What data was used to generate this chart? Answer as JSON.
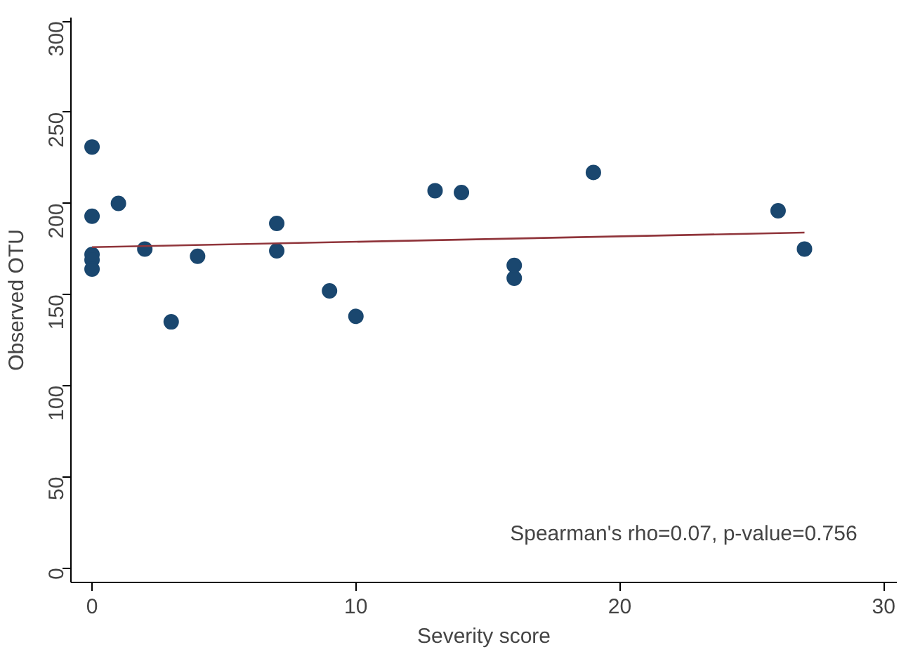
{
  "chart_data": {
    "type": "scatter",
    "xlabel": "Severity score",
    "ylabel": "Observed OTU",
    "xlim": [
      -0.8,
      30.5
    ],
    "ylim": [
      -8,
      302
    ],
    "xticks": [
      0,
      10,
      20,
      30
    ],
    "yticks": [
      0,
      50,
      100,
      150,
      200,
      250,
      300
    ],
    "grid": false,
    "series": [
      {
        "marker": "circle",
        "color": "#1a476f",
        "x": [
          0,
          0,
          0,
          0,
          0,
          1,
          2,
          3,
          4,
          7,
          7,
          9,
          10,
          13,
          14,
          16,
          16,
          19,
          26,
          27
        ],
        "values": [
          231,
          193,
          172,
          169,
          164,
          200,
          175,
          135,
          171,
          189,
          174,
          152,
          138,
          207,
          206,
          166,
          159,
          217,
          196,
          175
        ]
      },
      {
        "type": "line",
        "color": "#90353b",
        "x": [
          0,
          27
        ],
        "values": [
          176,
          184
        ]
      }
    ],
    "annotations": [
      "Spearman's rho=0.07, p-value=0.756"
    ]
  }
}
